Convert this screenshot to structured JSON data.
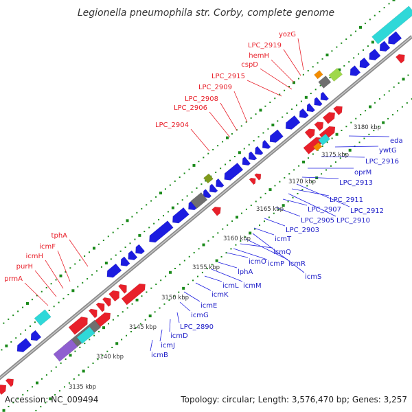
{
  "title": "Legionella pneumophila str. Corby, complete genome",
  "footer": {
    "accession": "Accession: NC_009494",
    "topology": "Topology: circular; Length: 3,576,470 bp; Genes: 3,257"
  },
  "colors": {
    "forward": "#e8202a",
    "reverse": "#1c1ce0",
    "backbone": "#909090",
    "tick_green": "#1a8a1a",
    "gray_feature": "#6f6f6f",
    "cyan_feature": "#2fd8d8",
    "orange_feature": "#f28c00",
    "olive_feature": "#7f9a1c",
    "lime_feature": "#9fd84a",
    "purple_feature": "#8f5fd0"
  },
  "kbp_labels": [
    "3135 kbp",
    "3140 kbp",
    "3145 kbp",
    "3150 kbp",
    "3155 kbp",
    "3160 kbp",
    "3165 kbp",
    "3170 kbp",
    "3175 kbp",
    "3180 kbp"
  ],
  "forward_genes": [
    "prmA",
    "purH",
    "icmH",
    "icmF",
    "tphA",
    "LPC_2904",
    "LPC_2906",
    "LPC_2908",
    "LPC_2909",
    "LPC_2915",
    "cspD",
    "hemH",
    "LPC_2919",
    "yozG"
  ],
  "reverse_genes": [
    "icmB",
    "icmJ",
    "icmD",
    "LPC_2890",
    "icmG",
    "icmE",
    "icmK",
    "icmL",
    "icmM",
    "lphA",
    "icmO",
    "icmP",
    "icmQ",
    "icmR",
    "icmS",
    "icmT",
    "LPC_2903",
    "LPC_2905",
    "LPC_2907",
    "LPC_2910",
    "LPC_2911",
    "LPC_2912",
    "LPC_2913",
    "oprM",
    "LPC_2916",
    "ywtG",
    "eda"
  ]
}
